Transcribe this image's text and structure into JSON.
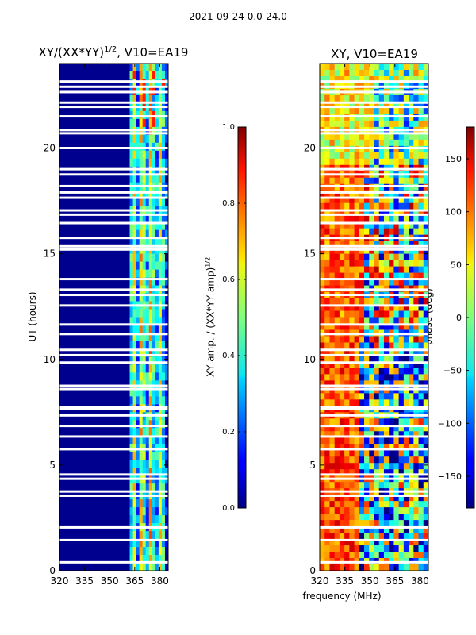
{
  "page": {
    "suptitle": "2021-09-24 0.0-24.0"
  },
  "colors": {
    "jet_low": "#00007f",
    "jet_mid": "#7fff7f",
    "jet_high": "#7f0000",
    "gap": "#ffffff",
    "axis": "#000000"
  },
  "chart_data": [
    {
      "type": "heatmap",
      "title": "XY/(XX*YY)^1/2, V10=EA19",
      "title_main": "XY/(XX*YY)",
      "title_sup": "1/2",
      "title_tail": ", V10=EA19",
      "xlabel": "",
      "ylabel": "UT (hours)",
      "xlim": [
        320,
        385
      ],
      "ylim": [
        0,
        24
      ],
      "xticks": [
        "320",
        "335",
        "350",
        "365",
        "380"
      ],
      "yticks": [
        "0",
        "5",
        "10",
        "15",
        "20"
      ],
      "signal_band_mhz": [
        362,
        385
      ],
      "gaps_ut_hours": [
        0.4,
        1.45,
        2.05,
        3.55,
        3.75,
        4.35,
        4.55,
        5.75,
        6.35,
        6.85,
        7.35,
        7.65,
        7.75,
        8.6,
        8.75,
        9.85,
        10.2,
        10.45,
        11.2,
        11.65,
        12.55,
        13.05,
        13.3,
        13.8,
        15.2,
        15.35,
        15.75,
        16.45,
        16.85,
        17.05,
        17.65,
        17.9,
        18.2,
        18.75,
        19.0,
        20.0,
        20.7,
        20.85,
        21.5,
        21.95,
        22.15,
        22.65,
        22.9,
        23.15
      ],
      "colorbar": {
        "label": "XY amp. / (XX*YY amp)^1/2",
        "label_main": "XY amp. / (XX*YY amp)",
        "label_sup": "1/2",
        "range": [
          0.0,
          1.0
        ],
        "ticks": [
          "0.0",
          "0.2",
          "0.4",
          "0.6",
          "0.8",
          "1.0"
        ]
      }
    },
    {
      "type": "heatmap",
      "title": "XY, V10=EA19",
      "xlabel": "frequency (MHz)",
      "ylabel": "",
      "xlim": [
        320,
        385
      ],
      "ylim": [
        0,
        24
      ],
      "xticks": [
        "320",
        "335",
        "350",
        "365",
        "380"
      ],
      "yticks": [
        "0",
        "5",
        "10",
        "15",
        "20"
      ],
      "gaps_ut_hours": [
        0.4,
        1.45,
        2.05,
        3.55,
        3.75,
        4.35,
        4.55,
        5.75,
        6.35,
        6.85,
        7.35,
        7.65,
        7.75,
        8.6,
        8.75,
        9.85,
        10.2,
        10.45,
        11.2,
        11.65,
        12.55,
        13.05,
        13.3,
        13.8,
        15.2,
        15.35,
        15.75,
        16.45,
        16.85,
        17.05,
        17.65,
        17.9,
        18.2,
        18.75,
        19.0,
        20.0,
        20.7,
        20.85,
        21.5,
        21.95,
        22.15,
        22.65,
        22.9,
        23.15
      ],
      "colorbar": {
        "label": "phase (deg)",
        "range": [
          -180,
          180
        ],
        "ticks": [
          "150",
          "100",
          "50",
          "0",
          "−50",
          "−100",
          "−150"
        ]
      }
    }
  ]
}
